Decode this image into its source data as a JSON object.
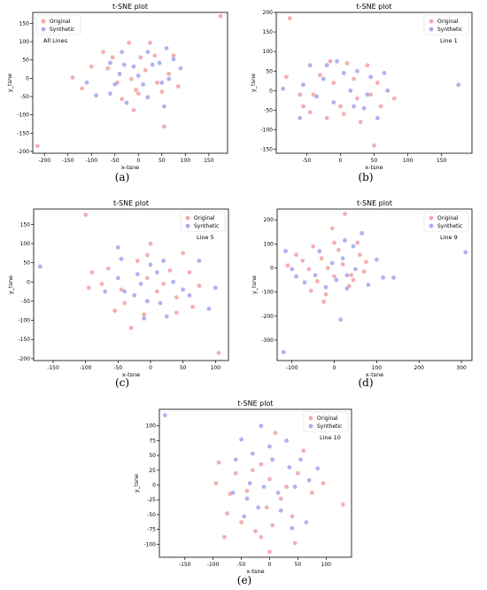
{
  "colors": {
    "original": "#f4a6a6",
    "synthetic": "#a9a9ee"
  },
  "chart_data": [
    {
      "id": "a",
      "caption": "(a)",
      "type": "scatter",
      "title": "t-SNE plot",
      "xlabel": "x-tsne",
      "ylabel": "y_tsne",
      "annotation": "All Lines",
      "annotation_pos": "top-left",
      "legend_pos": "top-left",
      "xlim": [
        -225,
        190
      ],
      "ylim": [
        -205,
        180
      ],
      "xticks": [
        -200,
        -150,
        -100,
        -50,
        0,
        50,
        100,
        150
      ],
      "yticks": [
        -200,
        -150,
        -100,
        -50,
        0,
        50,
        100,
        150
      ],
      "series": [
        {
          "name": "Original",
          "points": [
            [
              -215,
              -185
            ],
            [
              175,
              170
            ],
            [
              -140,
              2
            ],
            [
              -120,
              -28
            ],
            [
              -100,
              32
            ],
            [
              -75,
              72
            ],
            [
              -55,
              57
            ],
            [
              -45,
              -12
            ],
            [
              -35,
              -57
            ],
            [
              -15,
              -2
            ],
            [
              -5,
              -32
            ],
            [
              5,
              57
            ],
            [
              15,
              22
            ],
            [
              25,
              97
            ],
            [
              35,
              62
            ],
            [
              40,
              -12
            ],
            [
              50,
              -37
            ],
            [
              55,
              -132
            ],
            [
              65,
              12
            ],
            [
              75,
              62
            ],
            [
              85,
              -22
            ],
            [
              -20,
              97
            ],
            [
              0,
              -42
            ],
            [
              -10,
              -87
            ],
            [
              -65,
              27
            ]
          ]
        },
        {
          "name": "Synthetic",
          "points": [
            [
              -110,
              -12
            ],
            [
              -90,
              -47
            ],
            [
              -60,
              42
            ],
            [
              -50,
              -17
            ],
            [
              -40,
              12
            ],
            [
              -30,
              37
            ],
            [
              -25,
              -67
            ],
            [
              -10,
              32
            ],
            [
              0,
              7
            ],
            [
              10,
              -17
            ],
            [
              20,
              -52
            ],
            [
              30,
              37
            ],
            [
              45,
              42
            ],
            [
              55,
              -77
            ],
            [
              60,
              82
            ],
            [
              65,
              -2
            ],
            [
              75,
              52
            ],
            [
              90,
              27
            ],
            [
              -60,
              -42
            ],
            [
              20,
              72
            ],
            [
              -35,
              72
            ],
            [
              50,
              -12
            ]
          ]
        }
      ]
    },
    {
      "id": "b",
      "caption": "(b)",
      "type": "scatter",
      "title": "t-SNE plot",
      "xlabel": "x-tsne",
      "ylabel": "y_tsne",
      "annotation": "Line 1",
      "annotation_pos": "top-right",
      "legend_pos": "top-right",
      "xlim": [
        -95,
        195
      ],
      "ylim": [
        -160,
        200
      ],
      "xticks": [
        -50,
        0,
        50,
        100,
        150
      ],
      "yticks": [
        -150,
        -100,
        -50,
        0,
        50,
        100,
        150,
        200
      ],
      "series": [
        {
          "name": "Original",
          "points": [
            [
              -75,
              185
            ],
            [
              50,
              -140
            ],
            [
              -80,
              35
            ],
            [
              -60,
              -10
            ],
            [
              -55,
              -40
            ],
            [
              -45,
              -55
            ],
            [
              -30,
              40
            ],
            [
              -20,
              -70
            ],
            [
              -10,
              20
            ],
            [
              0,
              -40
            ],
            [
              10,
              70
            ],
            [
              20,
              30
            ],
            [
              25,
              -20
            ],
            [
              30,
              -80
            ],
            [
              40,
              65
            ],
            [
              45,
              -10
            ],
            [
              55,
              20
            ],
            [
              60,
              -40
            ],
            [
              80,
              -20
            ],
            [
              -40,
              -10
            ],
            [
              5,
              -60
            ],
            [
              -15,
              75
            ]
          ]
        },
        {
          "name": "Synthetic",
          "points": [
            [
              175,
              15
            ],
            [
              -85,
              5
            ],
            [
              -55,
              15
            ],
            [
              -45,
              65
            ],
            [
              -35,
              -15
            ],
            [
              -25,
              30
            ],
            [
              -10,
              -30
            ],
            [
              -5,
              75
            ],
            [
              5,
              45
            ],
            [
              15,
              0
            ],
            [
              25,
              50
            ],
            [
              35,
              -45
            ],
            [
              45,
              35
            ],
            [
              55,
              -70
            ],
            [
              65,
              45
            ],
            [
              70,
              0
            ],
            [
              -60,
              -70
            ],
            [
              20,
              -40
            ],
            [
              -20,
              65
            ],
            [
              40,
              -10
            ]
          ]
        }
      ]
    },
    {
      "id": "c",
      "caption": "(c)",
      "type": "scatter",
      "title": "t-SNE plot",
      "xlabel": "x-tsne",
      "ylabel": "y_tsne",
      "annotation": "Line 5",
      "annotation_pos": "top-right",
      "legend_pos": "top-right",
      "xlim": [
        -180,
        120
      ],
      "ylim": [
        -205,
        190
      ],
      "xticks": [
        -150,
        -100,
        -50,
        0,
        50,
        100
      ],
      "yticks": [
        -200,
        -150,
        -100,
        -50,
        0,
        50,
        100,
        150
      ],
      "series": [
        {
          "name": "Original",
          "points": [
            [
              -100,
              175
            ],
            [
              105,
              -185
            ],
            [
              -95,
              -15
            ],
            [
              -90,
              25
            ],
            [
              -65,
              35
            ],
            [
              -55,
              -75
            ],
            [
              -40,
              -55
            ],
            [
              -30,
              -120
            ],
            [
              -20,
              55
            ],
            [
              -10,
              -85
            ],
            [
              -5,
              70
            ],
            [
              0,
              100
            ],
            [
              10,
              -25
            ],
            [
              20,
              -5
            ],
            [
              30,
              30
            ],
            [
              40,
              -40
            ],
            [
              50,
              75
            ],
            [
              60,
              25
            ],
            [
              65,
              -65
            ],
            [
              75,
              -10
            ],
            [
              -45,
              -20
            ],
            [
              -75,
              -5
            ],
            [
              40,
              -80
            ],
            [
              -5,
              10
            ]
          ]
        },
        {
          "name": "Synthetic",
          "points": [
            [
              -170,
              40
            ],
            [
              -50,
              90
            ],
            [
              -45,
              60
            ],
            [
              -50,
              10
            ],
            [
              -40,
              -25
            ],
            [
              -25,
              -35
            ],
            [
              -15,
              -5
            ],
            [
              -10,
              -95
            ],
            [
              0,
              45
            ],
            [
              10,
              25
            ],
            [
              15,
              -55
            ],
            [
              20,
              55
            ],
            [
              25,
              -90
            ],
            [
              35,
              0
            ],
            [
              50,
              -20
            ],
            [
              75,
              55
            ],
            [
              90,
              -70
            ],
            [
              100,
              -15
            ],
            [
              -70,
              -25
            ],
            [
              -5,
              -50
            ],
            [
              60,
              -35
            ],
            [
              -20,
              20
            ]
          ]
        }
      ]
    },
    {
      "id": "d",
      "caption": "(d)",
      "type": "scatter",
      "title": "t-SNE plot",
      "xlabel": "x-tsne",
      "ylabel": "y_tsne",
      "annotation": "Line 9",
      "annotation_pos": "top-right",
      "legend_pos": "top-right",
      "xlim": [
        -135,
        325
      ],
      "ylim": [
        -385,
        245
      ],
      "xticks": [
        -100,
        0,
        100,
        200,
        300
      ],
      "yticks": [
        -300,
        -200,
        -100,
        0,
        100,
        200
      ],
      "series": [
        {
          "name": "Original",
          "points": [
            [
              25,
              225
            ],
            [
              -110,
              10
            ],
            [
              -90,
              55
            ],
            [
              -75,
              30
            ],
            [
              -60,
              -5
            ],
            [
              -50,
              90
            ],
            [
              -40,
              -55
            ],
            [
              -30,
              40
            ],
            [
              -25,
              -140
            ],
            [
              -15,
              0
            ],
            [
              -5,
              165
            ],
            [
              0,
              -35
            ],
            [
              10,
              75
            ],
            [
              20,
              15
            ],
            [
              35,
              -75
            ],
            [
              40,
              -30
            ],
            [
              55,
              105
            ],
            [
              60,
              55
            ],
            [
              70,
              -15
            ],
            [
              75,
              25
            ],
            [
              -55,
              -95
            ],
            [
              -20,
              -110
            ],
            [
              0,
              105
            ],
            [
              45,
              -50
            ]
          ]
        },
        {
          "name": "Synthetic",
          "points": [
            [
              -120,
              -350
            ],
            [
              310,
              65
            ],
            [
              -115,
              70
            ],
            [
              -90,
              -35
            ],
            [
              -70,
              -60
            ],
            [
              -45,
              -30
            ],
            [
              -35,
              70
            ],
            [
              -20,
              -80
            ],
            [
              -5,
              20
            ],
            [
              5,
              -50
            ],
            [
              15,
              -215
            ],
            [
              20,
              40
            ],
            [
              25,
              115
            ],
            [
              30,
              -30
            ],
            [
              45,
              90
            ],
            [
              50,
              -5
            ],
            [
              65,
              145
            ],
            [
              80,
              -70
            ],
            [
              100,
              35
            ],
            [
              115,
              -40
            ],
            [
              140,
              -40
            ],
            [
              -100,
              -5
            ],
            [
              30,
              -85
            ]
          ]
        }
      ]
    },
    {
      "id": "e",
      "caption": "(e)",
      "type": "scatter",
      "title": "t-SNE plot",
      "xlabel": "x-tsne",
      "ylabel": "y_tsne",
      "annotation": "Line 10",
      "annotation_pos": "top-right",
      "legend_pos": "top-right",
      "xlim": [
        -195,
        145
      ],
      "ylim": [
        -122,
        128
      ],
      "xticks": [
        -150,
        -100,
        -50,
        0,
        50,
        100
      ],
      "yticks": [
        -100,
        -75,
        -50,
        -25,
        0,
        25,
        50,
        75,
        100
      ],
      "series": [
        {
          "name": "Original",
          "points": [
            [
              -95,
              3
            ],
            [
              -90,
              38
            ],
            [
              -75,
              -48
            ],
            [
              -70,
              -15
            ],
            [
              -60,
              20
            ],
            [
              -50,
              -63
            ],
            [
              -40,
              -10
            ],
            [
              -30,
              25
            ],
            [
              -25,
              -78
            ],
            [
              -15,
              35
            ],
            [
              -5,
              -38
            ],
            [
              0,
              10
            ],
            [
              5,
              -68
            ],
            [
              10,
              88
            ],
            [
              20,
              -23
            ],
            [
              30,
              -3
            ],
            [
              40,
              -53
            ],
            [
              45,
              -98
            ],
            [
              50,
              20
            ],
            [
              60,
              58
            ],
            [
              75,
              -13
            ],
            [
              95,
              3
            ],
            [
              130,
              -33
            ],
            [
              -80,
              -88
            ],
            [
              -15,
              -88
            ],
            [
              0,
              -113
            ]
          ]
        },
        {
          "name": "Synthetic",
          "points": [
            [
              -185,
              118
            ],
            [
              -60,
              43
            ],
            [
              -50,
              77
            ],
            [
              -40,
              -23
            ],
            [
              -35,
              3
            ],
            [
              -30,
              53
            ],
            [
              -20,
              -38
            ],
            [
              -15,
              100
            ],
            [
              -10,
              -3
            ],
            [
              0,
              65
            ],
            [
              5,
              43
            ],
            [
              15,
              -13
            ],
            [
              20,
              -43
            ],
            [
              30,
              75
            ],
            [
              35,
              30
            ],
            [
              45,
              -3
            ],
            [
              55,
              43
            ],
            [
              65,
              -63
            ],
            [
              70,
              8
            ],
            [
              85,
              28
            ],
            [
              -65,
              -13
            ],
            [
              40,
              -73
            ],
            [
              -45,
              -53
            ]
          ]
        }
      ]
    }
  ]
}
